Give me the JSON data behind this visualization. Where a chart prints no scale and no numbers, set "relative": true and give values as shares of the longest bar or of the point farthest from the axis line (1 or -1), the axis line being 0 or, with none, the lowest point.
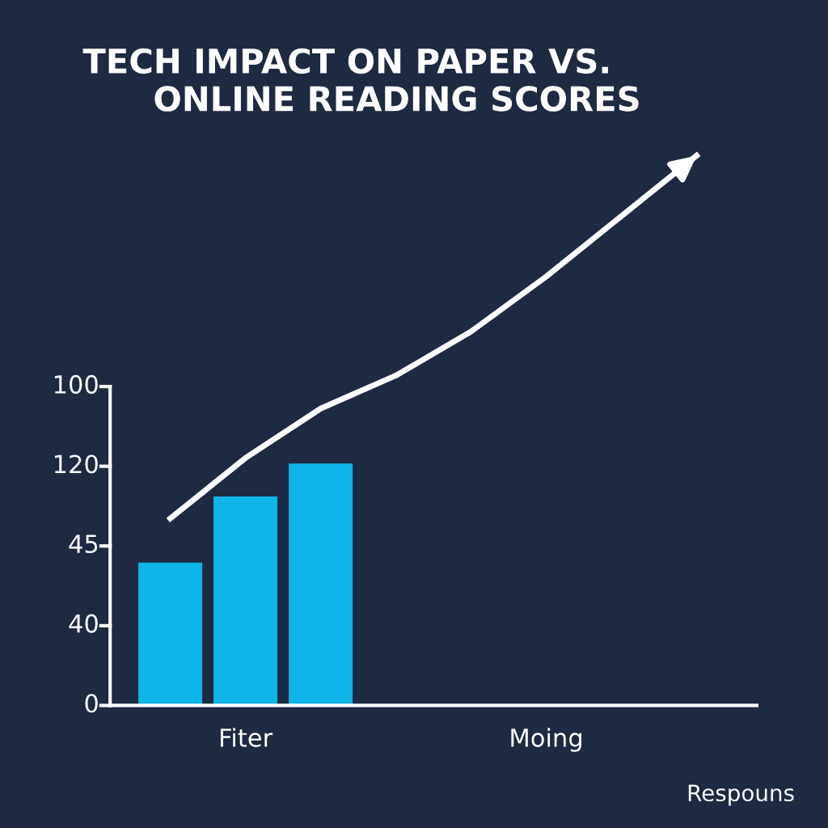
{
  "chart_data": {
    "type": "bar",
    "title": "TECH IMPACT ON PAPER VS.\n      ONLINE READING SCORES",
    "relative": true,
    "categories": [
      null,
      "Fiter",
      null,
      null,
      null,
      "Moing",
      null,
      null
    ],
    "series": [
      {
        "color": "#0fb4e8",
        "values": [
          0.26,
          0.38,
          0.44,
          null,
          null,
          null,
          null,
          null
        ]
      },
      {
        "type": "line",
        "color": "#ffffff",
        "values": [
          0.34,
          0.45,
          0.54,
          0.6,
          0.68,
          0.78,
          0.89,
          1
        ]
      }
    ],
    "grid": false,
    "legend": false,
    "marker": "none",
    "line_style": "solid",
    "annotations": [
      "0",
      "40",
      "45",
      "120",
      "100",
      "Respouns"
    ]
  }
}
